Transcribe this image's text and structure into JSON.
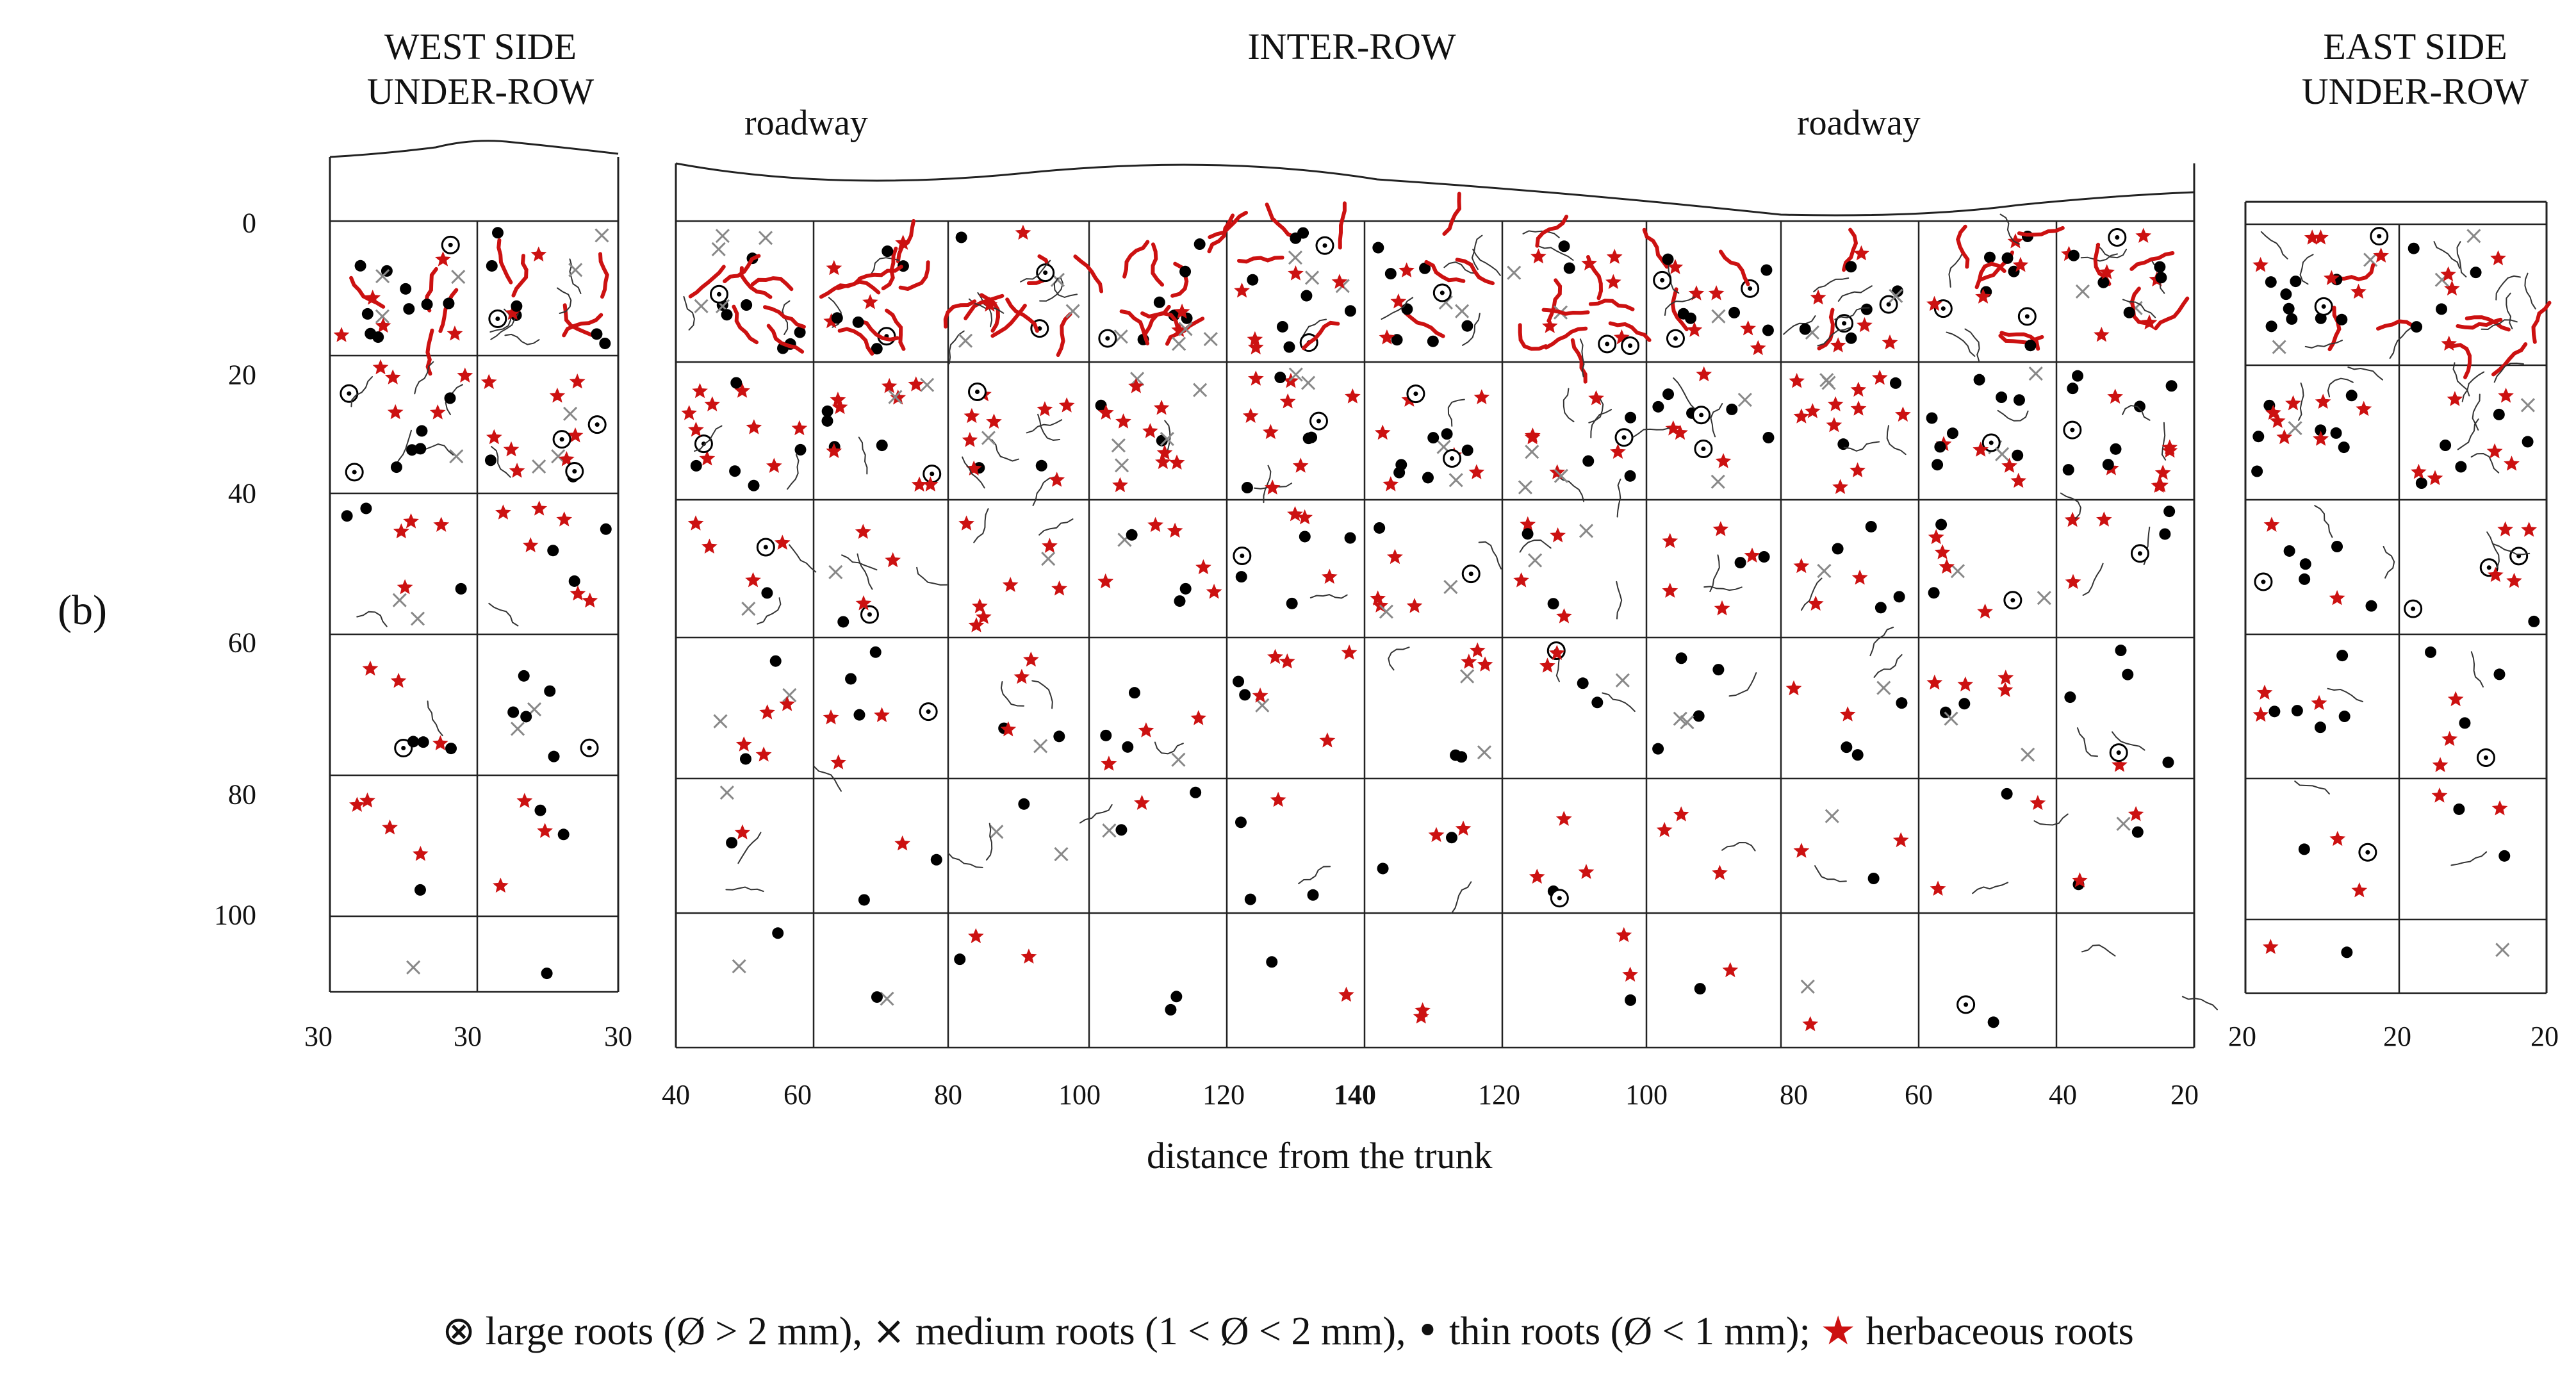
{
  "headers": {
    "west_line1": "WEST SIDE",
    "west_line2": "UNDER-ROW",
    "inter": "INTER-ROW",
    "east_line1": "EAST SIDE",
    "east_line2": "UNDER-ROW"
  },
  "roadway_left": "roadway",
  "roadway_right": "roadway",
  "panel_label": "(b)",
  "depth_ticks": [
    "0",
    "20",
    "40",
    "60",
    "80",
    "100"
  ],
  "west_x_ticks": [
    "30",
    "30",
    "30"
  ],
  "inter_x_ticks": [
    "40",
    "60",
    "80",
    "100",
    "120",
    "140",
    "120",
    "100",
    "80",
    "60",
    "40",
    "20"
  ],
  "east_x_ticks": [
    "20",
    "20",
    "20"
  ],
  "x_axis_label": "distance from the trunk",
  "legend": {
    "large_symbol": "⊗",
    "large_text": "large roots (Ø > 2 mm),",
    "medium_symbol": "×",
    "medium_text": "medium roots (1 < Ø < 2 mm),",
    "thin_symbol": "•",
    "thin_text": "thin roots (Ø < 1 mm);",
    "herb_symbol": "★",
    "herb_text": "herbaceous roots"
  },
  "colors": {
    "herbaceous": "#cc1111",
    "thin": "#000000",
    "medium": "#888888",
    "grid": "#222222"
  }
}
